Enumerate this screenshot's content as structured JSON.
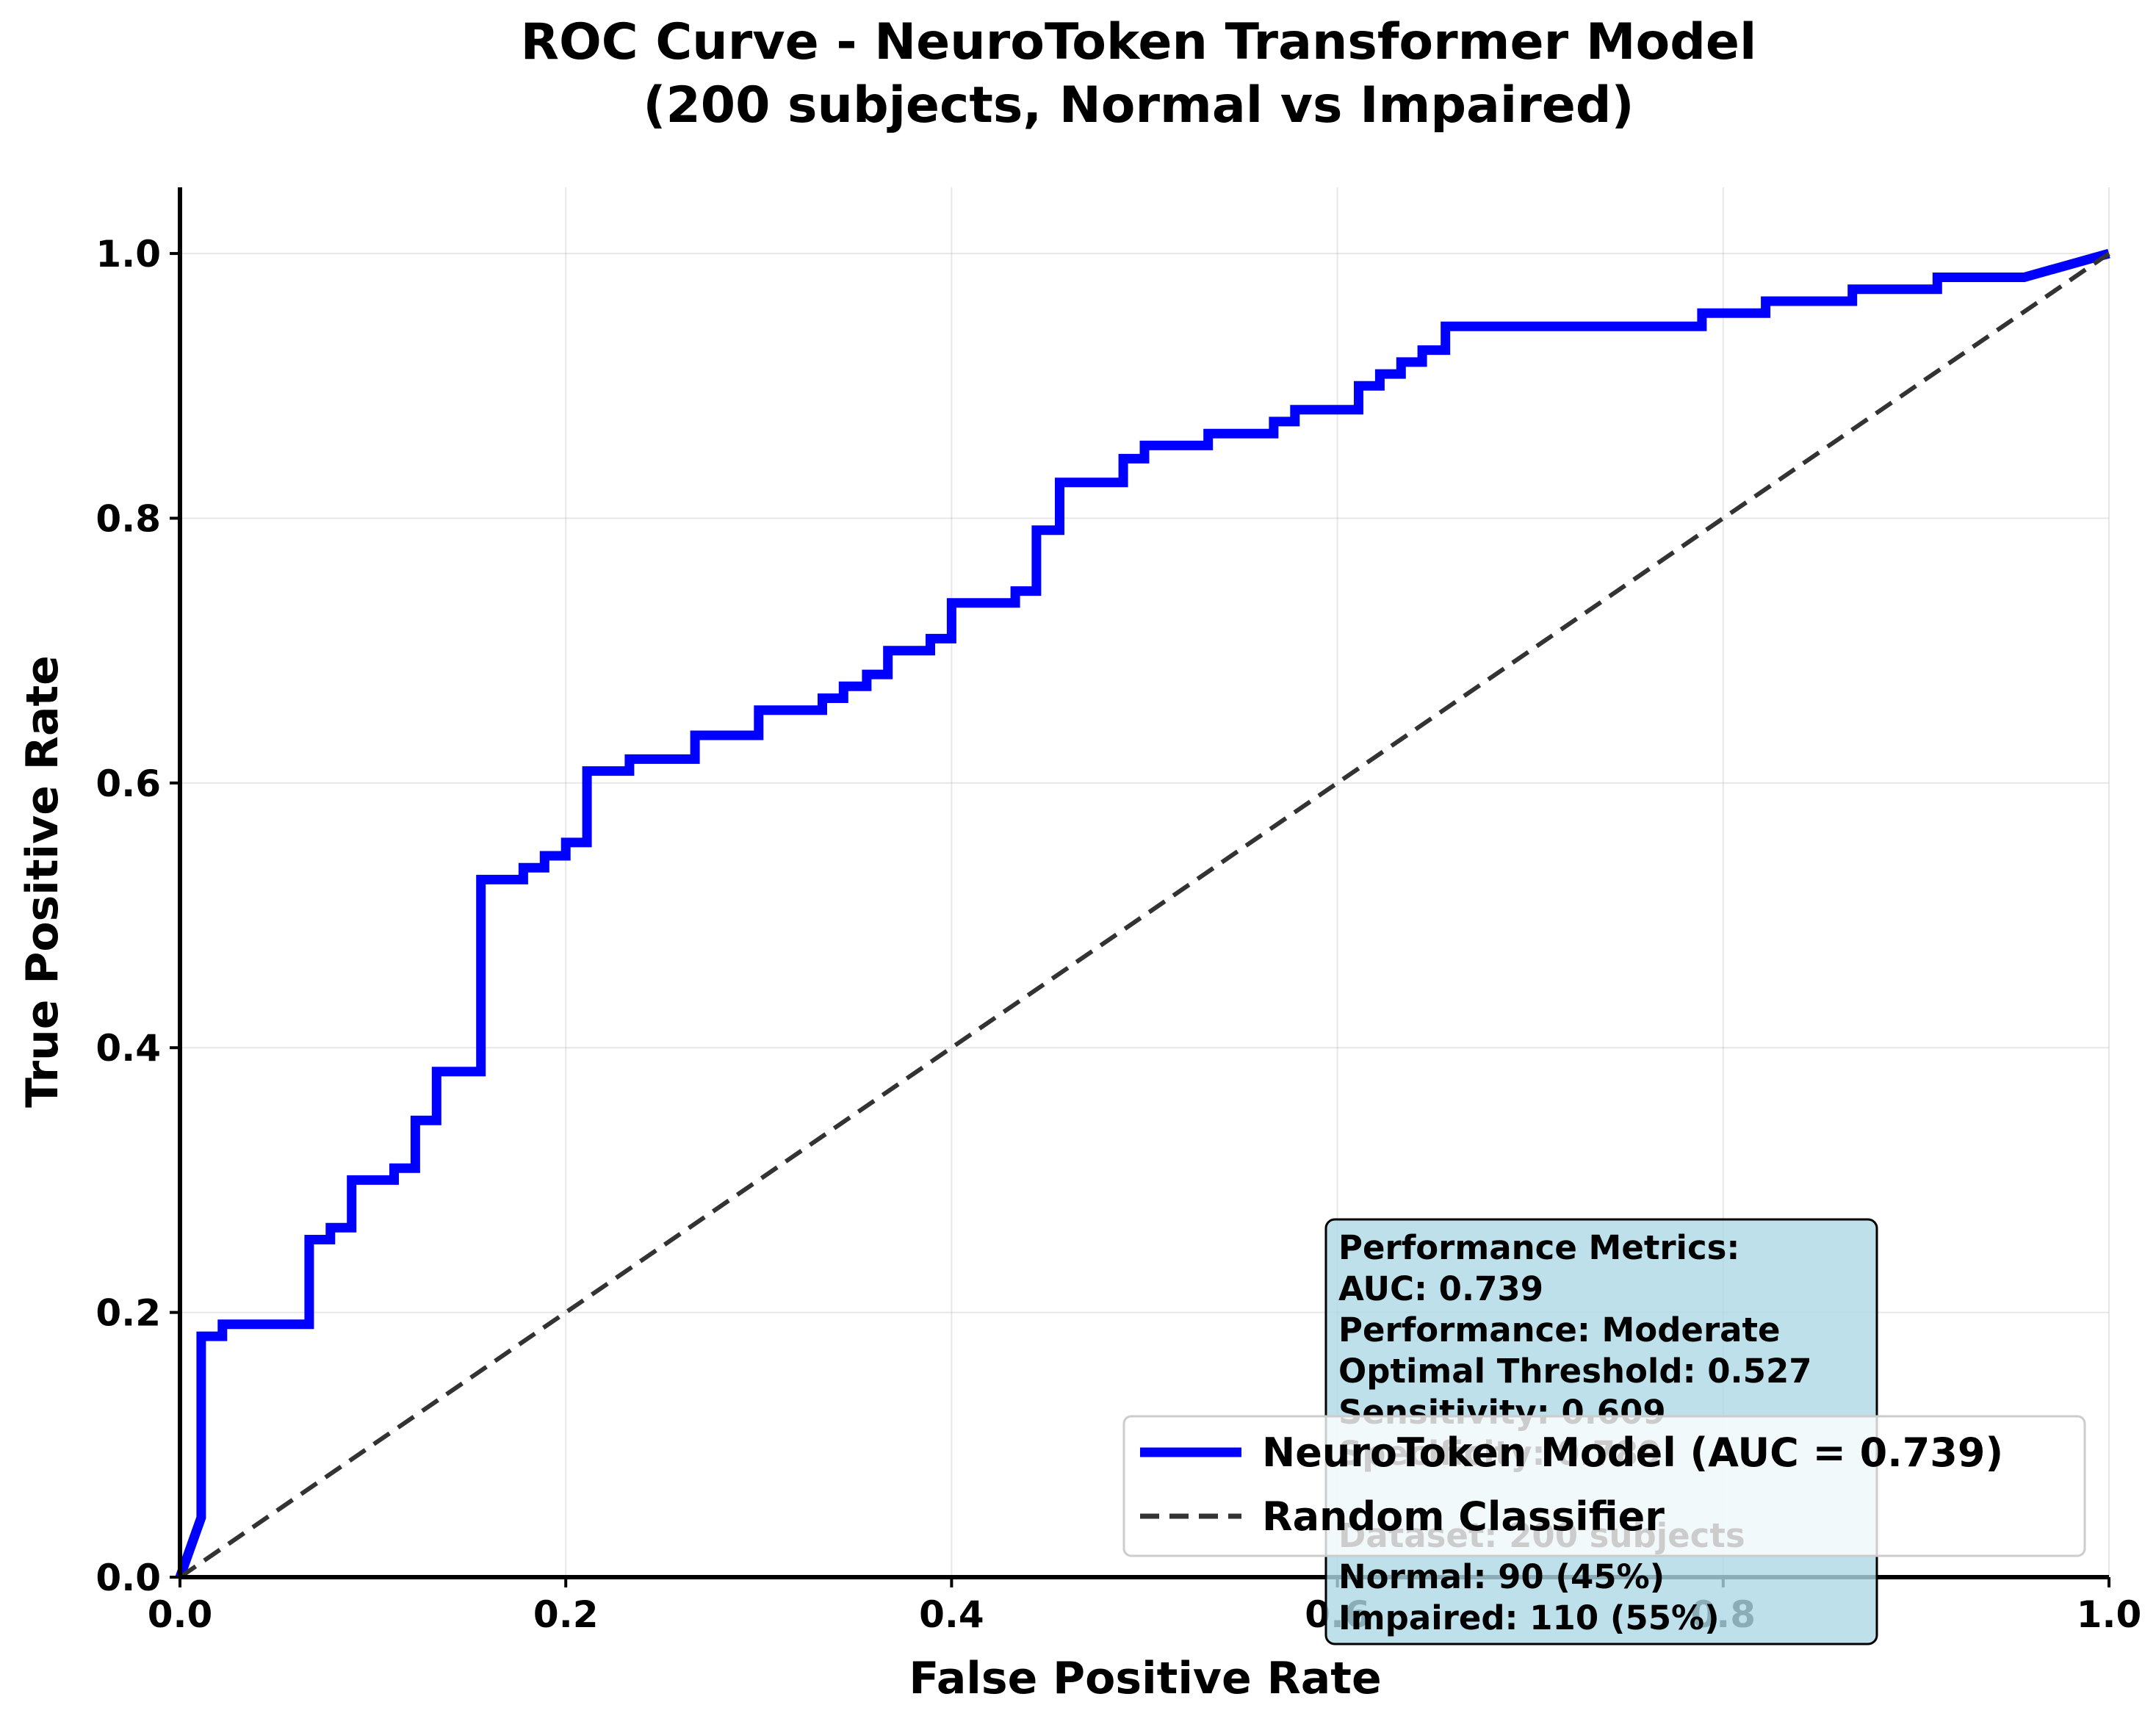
{
  "chart_data": {
    "type": "line",
    "title_line1": "ROC Curve - NeuroToken Transformer Model",
    "title_line2": "(200 subjects, Normal vs Impaired)",
    "xlabel": "False Positive Rate",
    "ylabel": "True Positive Rate",
    "xlim": [
      0,
      1
    ],
    "ylim": [
      0,
      1.05
    ],
    "xticks": [
      0.0,
      0.2,
      0.4,
      0.6,
      0.8,
      1.0
    ],
    "xtick_labels": [
      "0.0",
      "0.2",
      "0.4",
      "0.6",
      "0.8",
      "1.0"
    ],
    "yticks": [
      0.0,
      0.2,
      0.4,
      0.6,
      0.8,
      1.0
    ],
    "ytick_labels": [
      "0.0",
      "0.2",
      "0.4",
      "0.6",
      "0.8",
      "1.0"
    ],
    "grid": true,
    "legend_position": "lower-right",
    "series": [
      {
        "name": "NeuroToken Model (AUC = 0.739)",
        "color": "#0000ff",
        "style": "solid",
        "x": [
          0.0,
          0.011,
          0.011,
          0.022,
          0.022,
          0.067,
          0.067,
          0.078,
          0.078,
          0.089,
          0.089,
          0.111,
          0.111,
          0.122,
          0.122,
          0.133,
          0.133,
          0.156,
          0.156,
          0.178,
          0.178,
          0.189,
          0.189,
          0.2,
          0.2,
          0.211,
          0.211,
          0.233,
          0.233,
          0.267,
          0.267,
          0.3,
          0.3,
          0.333,
          0.333,
          0.344,
          0.344,
          0.356,
          0.356,
          0.367,
          0.367,
          0.389,
          0.389,
          0.4,
          0.4,
          0.433,
          0.433,
          0.444,
          0.444,
          0.456,
          0.456,
          0.489,
          0.489,
          0.5,
          0.5,
          0.533,
          0.533,
          0.567,
          0.567,
          0.578,
          0.578,
          0.611,
          0.611,
          0.622,
          0.622,
          0.633,
          0.633,
          0.644,
          0.644,
          0.656,
          0.656,
          0.789,
          0.789,
          0.822,
          0.822,
          0.867,
          0.867,
          0.911,
          0.911,
          0.956,
          1.0
        ],
        "y": [
          0.0,
          0.045,
          0.182,
          0.182,
          0.191,
          0.191,
          0.255,
          0.255,
          0.264,
          0.264,
          0.3,
          0.3,
          0.309,
          0.309,
          0.345,
          0.345,
          0.382,
          0.382,
          0.527,
          0.527,
          0.536,
          0.536,
          0.545,
          0.545,
          0.555,
          0.555,
          0.609,
          0.609,
          0.618,
          0.618,
          0.636,
          0.636,
          0.655,
          0.655,
          0.664,
          0.664,
          0.673,
          0.673,
          0.682,
          0.682,
          0.7,
          0.7,
          0.709,
          0.709,
          0.736,
          0.736,
          0.745,
          0.745,
          0.791,
          0.791,
          0.827,
          0.827,
          0.845,
          0.845,
          0.855,
          0.855,
          0.864,
          0.864,
          0.873,
          0.873,
          0.882,
          0.882,
          0.9,
          0.9,
          0.909,
          0.909,
          0.918,
          0.918,
          0.927,
          0.927,
          0.945,
          0.945,
          0.955,
          0.955,
          0.964,
          0.964,
          0.973,
          0.973,
          0.982,
          0.982,
          1.0
        ]
      },
      {
        "name": "Random Classifier",
        "color": "#333333",
        "style": "dashed",
        "x": [
          0.0,
          1.0
        ],
        "y": [
          0.0,
          1.0
        ]
      }
    ],
    "annotation": {
      "background": "#add8e6",
      "lines": [
        "Performance Metrics:",
        "AUC: 0.739",
        "Performance: Moderate",
        "Optimal Threshold: 0.527",
        "Sensitivity: 0.609",
        "Specificity: 0.789",
        "",
        "Dataset: 200 subjects",
        "Normal: 90 (45%)",
        "Impaired: 110 (55%)"
      ]
    }
  }
}
